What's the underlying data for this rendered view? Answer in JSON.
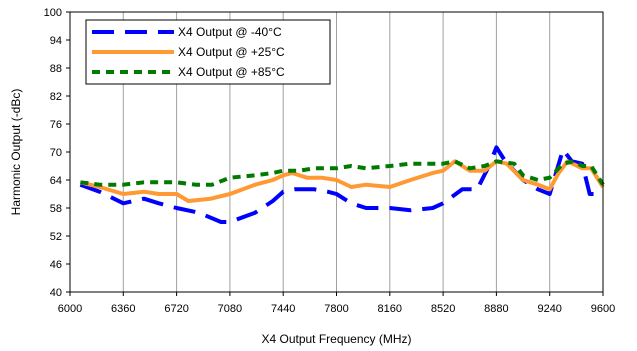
{
  "chart_data": {
    "type": "line",
    "title": "",
    "xlabel": "X4 Output Frequency (MHz)",
    "ylabel": "Harmonic Output (-dBc)",
    "xlim": [
      6000,
      9600
    ],
    "ylim": [
      40,
      100
    ],
    "xticks": [
      6000,
      6360,
      6720,
      7080,
      7440,
      7800,
      8160,
      8520,
      8880,
      9240,
      9600
    ],
    "yticks": [
      40,
      46,
      52,
      58,
      64,
      70,
      76,
      82,
      88,
      94,
      100
    ],
    "grid": "vertical",
    "legend_position": "top-left",
    "series": [
      {
        "name": "X4 Output @ -40°C",
        "color": "#0000ff",
        "style": "long-dash",
        "x": [
          6070,
          6200,
          6360,
          6500,
          6600,
          6720,
          6870,
          7020,
          7080,
          7250,
          7370,
          7440,
          7520,
          7580,
          7650,
          7740,
          7800,
          7900,
          8000,
          8100,
          8160,
          8300,
          8450,
          8520,
          8650,
          8750,
          8830,
          8880,
          8940,
          9060,
          9160,
          9240,
          9330,
          9390,
          9460,
          9510,
          9600
        ],
        "values": [
          63.0,
          61.5,
          59.0,
          60.0,
          59.0,
          58.0,
          57.0,
          55.0,
          55.0,
          57.0,
          59.5,
          61.5,
          62.0,
          62.0,
          62.0,
          61.5,
          61.0,
          59.0,
          58.0,
          58.0,
          58.0,
          57.5,
          58.0,
          59.0,
          62.0,
          62.0,
          67.0,
          71.0,
          68.0,
          64.0,
          62.0,
          61.0,
          70.5,
          68.0,
          67.5,
          61.0,
          61.0
        ]
      },
      {
        "name": "X4 Output @ +25°C",
        "color": "#ff9933",
        "style": "solid",
        "x": [
          6070,
          6200,
          6360,
          6500,
          6600,
          6720,
          6800,
          6950,
          7080,
          7250,
          7370,
          7440,
          7500,
          7600,
          7700,
          7800,
          7900,
          8000,
          8160,
          8300,
          8450,
          8520,
          8600,
          8700,
          8800,
          8880,
          8950,
          9060,
          9160,
          9240,
          9300,
          9360,
          9460,
          9520,
          9600
        ],
        "values": [
          63.5,
          62.5,
          61.0,
          61.5,
          61.0,
          61.0,
          59.5,
          60.0,
          61.0,
          63.0,
          64.0,
          65.0,
          65.5,
          64.5,
          64.5,
          64.0,
          62.5,
          63.0,
          62.5,
          64.0,
          65.5,
          66.0,
          68.0,
          66.0,
          66.0,
          68.0,
          67.5,
          64.0,
          63.0,
          62.0,
          65.5,
          68.0,
          66.5,
          66.5,
          62.5
        ]
      },
      {
        "name": "X4 Output @ +85°C",
        "color": "#007a00",
        "style": "short-dash",
        "x": [
          6070,
          6200,
          6360,
          6500,
          6600,
          6720,
          6850,
          6960,
          7080,
          7250,
          7370,
          7440,
          7550,
          7650,
          7800,
          7900,
          8000,
          8160,
          8300,
          8450,
          8520,
          8600,
          8700,
          8800,
          8880,
          9000,
          9060,
          9160,
          9240,
          9330,
          9400,
          9460,
          9520,
          9600
        ],
        "values": [
          63.5,
          63.0,
          63.0,
          63.5,
          63.5,
          63.5,
          63.0,
          63.0,
          64.5,
          65.0,
          65.5,
          66.0,
          66.0,
          66.5,
          66.5,
          67.0,
          66.5,
          67.0,
          67.5,
          67.5,
          67.5,
          68.0,
          66.5,
          67.0,
          68.0,
          67.5,
          65.0,
          64.0,
          64.5,
          67.5,
          68.0,
          67.0,
          67.0,
          63.0
        ]
      }
    ]
  }
}
